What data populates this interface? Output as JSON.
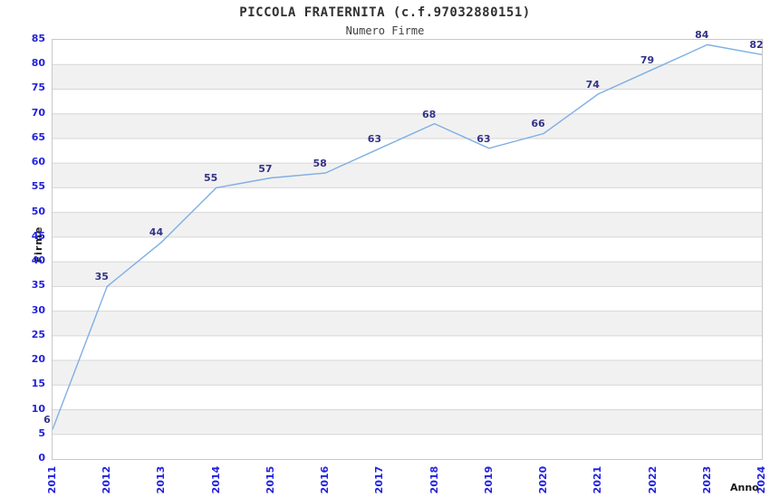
{
  "chart_data": {
    "type": "line",
    "title": "PICCOLA FRATERNITA (c.f.97032880151)",
    "subtitle": "Numero Firme",
    "xlabel": "Anno",
    "ylabel": "Firme",
    "x": [
      2011,
      2012,
      2013,
      2014,
      2015,
      2016,
      2017,
      2018,
      2019,
      2020,
      2021,
      2022,
      2023,
      2024
    ],
    "series": [
      {
        "name": "Numero Firme",
        "values": [
          6,
          35,
          44,
          55,
          57,
          58,
          63,
          68,
          63,
          66,
          74,
          79,
          84,
          82
        ]
      }
    ],
    "ylim": [
      0,
      85
    ],
    "ytick_step": 5,
    "grid": "horizontal-bands",
    "legend": "none",
    "markers": "none",
    "data_labels": true,
    "colors": {
      "line": "#7eafe4",
      "tick_label": "#2222dd",
      "data_label": "#333388",
      "band": "#f1f1f1",
      "gridline": "#d6d6d6",
      "plot_border": "#c8c8c8",
      "title": "#303030",
      "axis_label": "#1a1a1a"
    }
  }
}
